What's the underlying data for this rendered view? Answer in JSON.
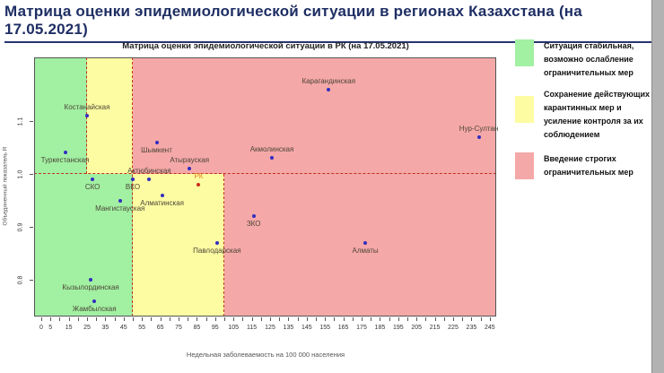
{
  "page": {
    "title": "Матрица оценки эпидемиологической ситуации в регионах Казахстана (на 17.05.2021)"
  },
  "chart_data": {
    "type": "scatter",
    "title": "Матрица оценки эпидемиологической ситуации в РК (на 17.05.2021)",
    "xlabel": "Недельная заболеваемость на 100 000 населения",
    "ylabel": "Объединенный показатель R",
    "xlim": [
      -4,
      249
    ],
    "ylim": [
      0.73,
      1.22
    ],
    "grid": false,
    "x_tick_step": 5,
    "x_tick_max": 245,
    "x_tick_labels": [
      0,
      5,
      15,
      25,
      35,
      45,
      55,
      65,
      75,
      85,
      95,
      105,
      115,
      125,
      135,
      145,
      155,
      165,
      175,
      185,
      195,
      205,
      215,
      225,
      235,
      245
    ],
    "y_ticks": [
      "0.8",
      "0.9",
      "1.0",
      "1.1"
    ],
    "thresholds": {
      "y_line": 1.0,
      "x_above_line": [
        25,
        50
      ],
      "x_below_line": [
        50,
        100
      ]
    },
    "zone_colors": {
      "green": "#a2f0a2",
      "yellow": "#fdfca2",
      "pink": "#f5a8a8"
    },
    "threshold_line_color": "#c2301e",
    "point_color": "#322cc0",
    "points": [
      {
        "name": "Костанайская",
        "x": 25,
        "y": 1.11,
        "label": "above"
      },
      {
        "name": "Туркестанская",
        "x": 13,
        "y": 1.04,
        "label": "below"
      },
      {
        "name": "Шымкент",
        "x": 63,
        "y": 1.06,
        "label": "below"
      },
      {
        "name": "Атырауская",
        "x": 81,
        "y": 1.01,
        "label": "above"
      },
      {
        "name": "Актюбинская",
        "x": 59,
        "y": 0.99,
        "label": "above"
      },
      {
        "name": "Акмолинская",
        "x": 126,
        "y": 1.03,
        "label": "above"
      },
      {
        "name": "Карагандинская",
        "x": 157,
        "y": 1.16,
        "label": "above"
      },
      {
        "name": "Нур-Султан",
        "x": 239,
        "y": 1.07,
        "label": "above"
      },
      {
        "name": "СКО",
        "x": 28,
        "y": 0.99,
        "label": "below"
      },
      {
        "name": "ВКО",
        "x": 50,
        "y": 0.99,
        "label": "below"
      },
      {
        "name": "РК",
        "x": 86,
        "y": 0.98,
        "label": "above",
        "point_color": "#cc2b1a",
        "label_color": "#e5821e"
      },
      {
        "name": "Алматинская",
        "x": 66,
        "y": 0.96,
        "label": "below"
      },
      {
        "name": "Мангистауская",
        "x": 43,
        "y": 0.95,
        "label": "below"
      },
      {
        "name": "ЗКО",
        "x": 116,
        "y": 0.92,
        "label": "below"
      },
      {
        "name": "Павлодарская",
        "x": 96,
        "y": 0.87,
        "label": "below"
      },
      {
        "name": "Алматы",
        "x": 177,
        "y": 0.87,
        "label": "below"
      },
      {
        "name": "Кызылординская",
        "x": 27,
        "y": 0.8,
        "label": "below"
      },
      {
        "name": "Жамбылская",
        "x": 29,
        "y": 0.76,
        "label": "below"
      }
    ]
  },
  "legend": {
    "items": [
      {
        "color": "#a2f0a2",
        "text": "Ситуация стабильная, возможно ослабление ограничительных мер"
      },
      {
        "color": "#fdfca2",
        "text": "Сохранение действующих карантинных мер и усиление контроля за их соблюдением"
      },
      {
        "color": "#f5a8a8",
        "text": "Введение строгих ограничительных мер"
      }
    ]
  }
}
